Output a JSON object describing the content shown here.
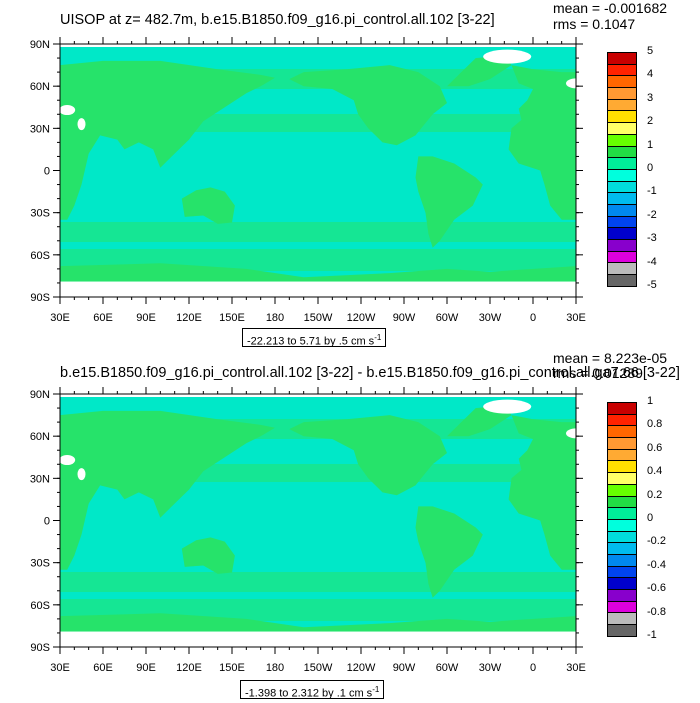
{
  "panels": [
    {
      "title": "UISOP at z= 482.7m, b.e15.B1850.f09_g16.pi_control.all.102 [3-22]",
      "mean": "mean = -0.001682",
      "rms": "rms = 0.1047",
      "range": "-22.213 to 5.71 by .5 cm s",
      "range_sup": "-1",
      "colorbar_labels": [
        "5",
        "4",
        "3",
        "2",
        "1",
        "0",
        "-1",
        "-2",
        "-3",
        "-4",
        "-5"
      ]
    },
    {
      "title": "b.e15.B1850.f09_g16.pi_control.all.102 [3-22] - b.e15.B1850.f09_g16.pi_control.all.ga7.66 [3-22]",
      "mean": "mean = 8.223e-05",
      "rms": "rms = 0.01289",
      "range": "-1.398 to 2.312 by .1 cm s",
      "range_sup": "-1",
      "colorbar_labels": [
        "1",
        "0.8",
        "0.6",
        "0.4",
        "0.2",
        "0",
        "-0.2",
        "-0.4",
        "-0.6",
        "-0.8",
        "-1"
      ]
    }
  ],
  "axes": {
    "lat_labels": [
      "90N",
      "60N",
      "30N",
      "0",
      "30S",
      "60S",
      "90S"
    ],
    "lon_labels": [
      "30E",
      "60E",
      "90E",
      "120E",
      "150E",
      "180",
      "150W",
      "120W",
      "90W",
      "60W",
      "30W",
      "0",
      "30E"
    ]
  },
  "colors": {
    "colorbar": [
      "#c80000",
      "#ff2200",
      "#ff6600",
      "#ff9933",
      "#ffaa33",
      "#ffe000",
      "#ffff66",
      "#66ff00",
      "#22dd44",
      "#00ee99",
      "#00ffdd",
      "#00dddd",
      "#00bbee",
      "#0088ee",
      "#0044ee",
      "#0000cc",
      "#8800cc",
      "#dd00dd",
      "#bbbbbb",
      "#666666"
    ],
    "land": "#26e36a",
    "ocean": "#00e8c8",
    "missing": "#ffffff"
  },
  "chart_data": {
    "type": "heatmap",
    "xlim": [
      30,
      390
    ],
    "ylim": [
      -90,
      90
    ],
    "grid": false
  }
}
